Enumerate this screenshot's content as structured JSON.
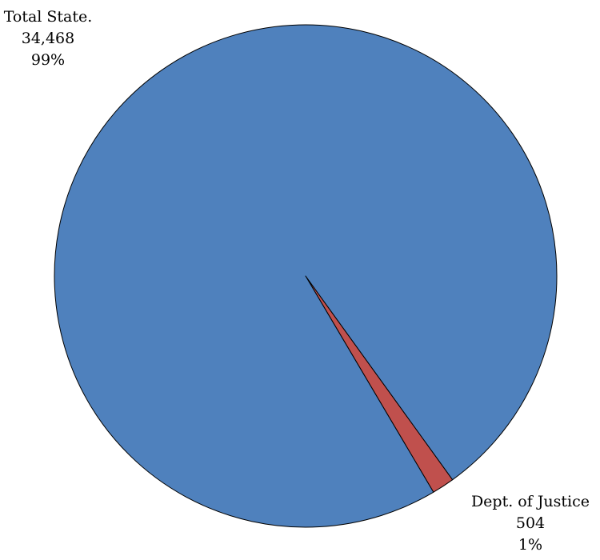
{
  "chart_data": {
    "type": "pie",
    "title": "",
    "slices": [
      {
        "label": "Total State.",
        "value": 34468,
        "value_text": "34,468",
        "percent_text": "99%",
        "color": "#4F81BD"
      },
      {
        "label": "Dept. of Justice",
        "value": 504,
        "value_text": "504",
        "percent_text": "1%",
        "color": "#C0504D"
      }
    ],
    "legend": "none",
    "slice_border_color": "#000000"
  }
}
